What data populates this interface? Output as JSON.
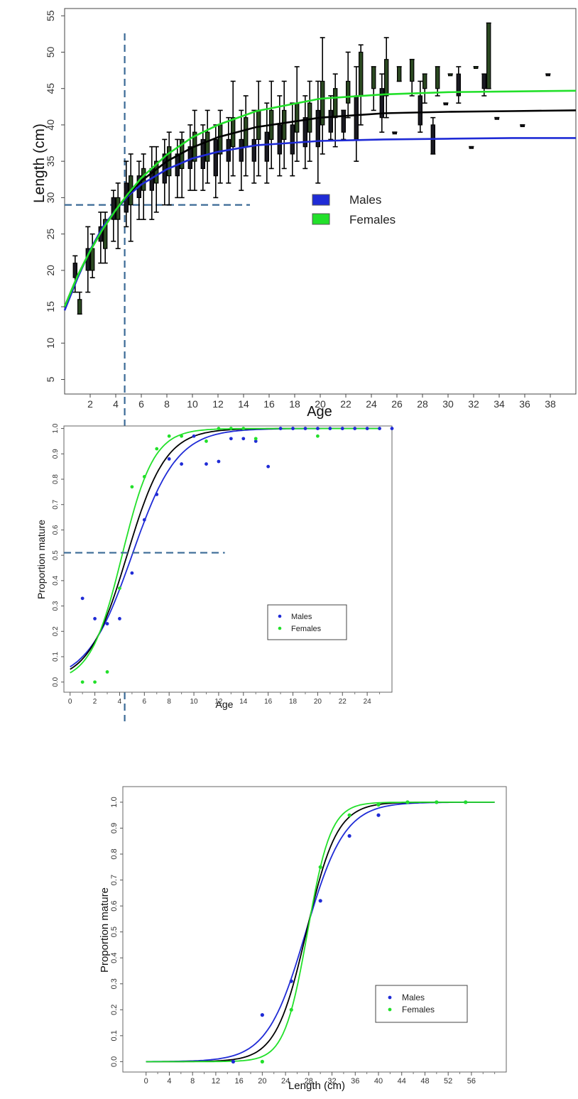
{
  "colors": {
    "males": "#1f2bd6",
    "females": "#22e02a",
    "combined": "#000000",
    "reference_line": "#3a6a96",
    "boxplot": "#000000"
  },
  "chart_data": [
    {
      "type": "box",
      "title": "",
      "xlabel": "Age",
      "ylabel": "Length (cm)",
      "xlim": [
        0,
        40
      ],
      "ylim": [
        3,
        56
      ],
      "xticks": [
        2,
        4,
        6,
        8,
        10,
        12,
        14,
        16,
        18,
        20,
        22,
        24,
        26,
        28,
        30,
        32,
        34,
        36,
        38
      ],
      "yticks": [
        5,
        10,
        15,
        20,
        25,
        30,
        35,
        40,
        45,
        50,
        55
      ],
      "legend": {
        "position": "center-right",
        "entries": [
          "Males",
          "Females"
        ]
      },
      "grid": false,
      "reference_lines": {
        "x": 4.7,
        "y": 29,
        "y_line_x_extent": [
          0,
          14.5
        ]
      },
      "boxes": [
        {
          "age": 1,
          "group": "males",
          "lo": 17,
          "q1": 19,
          "q3": 21,
          "hi": 22
        },
        {
          "age": 1,
          "group": "females",
          "lo": 14,
          "q1": 14,
          "q3": 16,
          "hi": 17
        },
        {
          "age": 2,
          "group": "males",
          "lo": 17,
          "q1": 20,
          "q3": 23,
          "hi": 26
        },
        {
          "age": 2,
          "group": "females",
          "lo": 19,
          "q1": 20,
          "q3": 23,
          "hi": 25
        },
        {
          "age": 3,
          "group": "males",
          "lo": 21,
          "q1": 24,
          "q3": 26,
          "hi": 28
        },
        {
          "age": 3,
          "group": "females",
          "lo": 21,
          "q1": 23,
          "q3": 27,
          "hi": 28
        },
        {
          "age": 4,
          "group": "males",
          "lo": 24,
          "q1": 27,
          "q3": 30,
          "hi": 31
        },
        {
          "age": 4,
          "group": "females",
          "lo": 23,
          "q1": 27,
          "q3": 30,
          "hi": 32
        },
        {
          "age": 5,
          "group": "males",
          "lo": 26,
          "q1": 28,
          "q3": 32,
          "hi": 35
        },
        {
          "age": 5,
          "group": "females",
          "lo": 24,
          "q1": 29,
          "q3": 33,
          "hi": 36
        },
        {
          "age": 6,
          "group": "males",
          "lo": 27,
          "q1": 30,
          "q3": 33,
          "hi": 35
        },
        {
          "age": 6,
          "group": "females",
          "lo": 27,
          "q1": 31,
          "q3": 34,
          "hi": 36
        },
        {
          "age": 7,
          "group": "males",
          "lo": 27,
          "q1": 31,
          "q3": 34,
          "hi": 37
        },
        {
          "age": 7,
          "group": "females",
          "lo": 28,
          "q1": 32,
          "q3": 35,
          "hi": 37
        },
        {
          "age": 8,
          "group": "males",
          "lo": 29,
          "q1": 32,
          "q3": 36,
          "hi": 38
        },
        {
          "age": 8,
          "group": "females",
          "lo": 29,
          "q1": 33,
          "q3": 37,
          "hi": 39
        },
        {
          "age": 9,
          "group": "males",
          "lo": 30,
          "q1": 33,
          "q3": 36,
          "hi": 38
        },
        {
          "age": 9,
          "group": "females",
          "lo": 30,
          "q1": 34,
          "q3": 38,
          "hi": 39
        },
        {
          "age": 10,
          "group": "males",
          "lo": 31,
          "q1": 34,
          "q3": 37,
          "hi": 40
        },
        {
          "age": 10,
          "group": "females",
          "lo": 31,
          "q1": 35,
          "q3": 39,
          "hi": 42
        },
        {
          "age": 11,
          "group": "males",
          "lo": 31,
          "q1": 34,
          "q3": 38,
          "hi": 40
        },
        {
          "age": 11,
          "group": "females",
          "lo": 32,
          "q1": 35,
          "q3": 39,
          "hi": 42
        },
        {
          "age": 12,
          "group": "males",
          "lo": 30,
          "q1": 33,
          "q3": 38,
          "hi": 40
        },
        {
          "age": 12,
          "group": "females",
          "lo": 32,
          "q1": 36,
          "q3": 40,
          "hi": 42
        },
        {
          "age": 13,
          "group": "males",
          "lo": 32,
          "q1": 35,
          "q3": 38,
          "hi": 41
        },
        {
          "age": 13,
          "group": "females",
          "lo": 33,
          "q1": 37,
          "q3": 41,
          "hi": 46
        },
        {
          "age": 14,
          "group": "males",
          "lo": 31,
          "q1": 35,
          "q3": 38,
          "hi": 42
        },
        {
          "age": 14,
          "group": "females",
          "lo": 33,
          "q1": 37,
          "q3": 41,
          "hi": 44
        },
        {
          "age": 15,
          "group": "males",
          "lo": 32,
          "q1": 35,
          "q3": 38,
          "hi": 42
        },
        {
          "age": 15,
          "group": "females",
          "lo": 33,
          "q1": 38,
          "q3": 42,
          "hi": 46
        },
        {
          "age": 16,
          "group": "males",
          "lo": 32,
          "q1": 35,
          "q3": 39,
          "hi": 43
        },
        {
          "age": 16,
          "group": "females",
          "lo": 34,
          "q1": 38,
          "q3": 42,
          "hi": 46
        },
        {
          "age": 17,
          "group": "males",
          "lo": 33,
          "q1": 36,
          "q3": 40,
          "hi": 44
        },
        {
          "age": 17,
          "group": "females",
          "lo": 34,
          "q1": 38,
          "q3": 42,
          "hi": 46
        },
        {
          "age": 18,
          "group": "males",
          "lo": 33,
          "q1": 36,
          "q3": 40,
          "hi": 43
        },
        {
          "age": 18,
          "group": "females",
          "lo": 35,
          "q1": 39,
          "q3": 43,
          "hi": 48
        },
        {
          "age": 19,
          "group": "males",
          "lo": 34,
          "q1": 37,
          "q3": 41,
          "hi": 44
        },
        {
          "age": 19,
          "group": "females",
          "lo": 35,
          "q1": 39,
          "q3": 43,
          "hi": 46
        },
        {
          "age": 20,
          "group": "males",
          "lo": 32,
          "q1": 37,
          "q3": 42,
          "hi": 46
        },
        {
          "age": 20,
          "group": "females",
          "lo": 36,
          "q1": 40,
          "q3": 46,
          "hi": 52
        },
        {
          "age": 21,
          "group": "males",
          "lo": 38,
          "q1": 39,
          "q3": 42,
          "hi": 44
        },
        {
          "age": 21,
          "group": "females",
          "lo": 37,
          "q1": 41,
          "q3": 45,
          "hi": 47
        },
        {
          "age": 22,
          "group": "males",
          "lo": 38,
          "q1": 39,
          "q3": 42,
          "hi": 42
        },
        {
          "age": 22,
          "group": "females",
          "lo": 41,
          "q1": 43,
          "q3": 46,
          "hi": 50
        },
        {
          "age": 23,
          "group": "males",
          "lo": 35,
          "q1": 38,
          "q3": 44,
          "hi": 48
        },
        {
          "age": 23,
          "group": "females",
          "lo": 40,
          "q1": 44,
          "q3": 50,
          "hi": 51
        },
        {
          "age": 24,
          "group": "females",
          "lo": 42,
          "q1": 45,
          "q3": 48,
          "hi": 48
        },
        {
          "age": 25,
          "group": "males",
          "lo": 39,
          "q1": 41,
          "q3": 45,
          "hi": 47
        },
        {
          "age": 25,
          "group": "females",
          "lo": 41,
          "q1": 44,
          "q3": 49,
          "hi": 52
        },
        {
          "age": 26,
          "group": "males",
          "lo": 39,
          "q1": 39,
          "q3": 39,
          "hi": 39
        },
        {
          "age": 26,
          "group": "females",
          "lo": 46,
          "q1": 46,
          "q3": 48,
          "hi": 48
        },
        {
          "age": 27,
          "group": "females",
          "lo": 44,
          "q1": 46,
          "q3": 49,
          "hi": 49
        },
        {
          "age": 28,
          "group": "males",
          "lo": 39,
          "q1": 40,
          "q3": 44,
          "hi": 46
        },
        {
          "age": 28,
          "group": "females",
          "lo": 43,
          "q1": 45,
          "q3": 47,
          "hi": 47
        },
        {
          "age": 29,
          "group": "males",
          "lo": 36,
          "q1": 36,
          "q3": 40,
          "hi": 41
        },
        {
          "age": 29,
          "group": "females",
          "lo": 44,
          "q1": 45,
          "q3": 48,
          "hi": 48
        },
        {
          "age": 30,
          "group": "males",
          "lo": 43,
          "q1": 43,
          "q3": 43,
          "hi": 43
        },
        {
          "age": 30,
          "group": "females",
          "lo": 47,
          "q1": 47,
          "q3": 47,
          "hi": 47
        },
        {
          "age": 31,
          "group": "males",
          "lo": 43,
          "q1": 44,
          "q3": 47,
          "hi": 48
        },
        {
          "age": 32,
          "group": "males",
          "lo": 37,
          "q1": 37,
          "q3": 37,
          "hi": 37
        },
        {
          "age": 32,
          "group": "females",
          "lo": 48,
          "q1": 48,
          "q3": 48,
          "hi": 48
        },
        {
          "age": 33,
          "group": "males",
          "lo": 44,
          "q1": 45,
          "q3": 47,
          "hi": 47
        },
        {
          "age": 33,
          "group": "females",
          "lo": 45,
          "q1": 45,
          "q3": 54,
          "hi": 54
        },
        {
          "age": 34,
          "group": "males",
          "lo": 41,
          "q1": 41,
          "q3": 41,
          "hi": 41
        },
        {
          "age": 36,
          "group": "males",
          "lo": 40,
          "q1": 40,
          "q3": 40,
          "hi": 40
        },
        {
          "age": 38,
          "group": "males",
          "lo": 47,
          "q1": 47,
          "q3": 47,
          "hi": 47
        }
      ],
      "curves": [
        {
          "group": "males",
          "x": [
            0,
            1,
            2,
            3,
            4,
            5,
            6,
            8,
            10,
            12,
            15,
            20,
            25,
            30,
            35,
            40
          ],
          "y": [
            14.5,
            18.9,
            22.8,
            26,
            28.3,
            30.3,
            31.8,
            33.9,
            35.4,
            36.3,
            37.2,
            37.8,
            38,
            38.1,
            38.2,
            38.2
          ]
        },
        {
          "group": "combined",
          "x": [
            0,
            1,
            2,
            3,
            4,
            5,
            6,
            8,
            10,
            12,
            15,
            20,
            25,
            30,
            35,
            40
          ],
          "y": [
            15,
            19.2,
            22.7,
            25.7,
            28.3,
            30.5,
            32.3,
            35,
            36.9,
            38.3,
            39.7,
            41,
            41.6,
            41.8,
            41.9,
            42
          ]
        },
        {
          "group": "females",
          "x": [
            0,
            1,
            2,
            3,
            4,
            5,
            6,
            8,
            10,
            12,
            15,
            20,
            25,
            30,
            35,
            40
          ],
          "y": [
            15,
            19.2,
            22.7,
            25.7,
            28.3,
            30.6,
            32.7,
            35.9,
            38.3,
            40,
            41.9,
            43.6,
            44.2,
            44.5,
            44.6,
            44.7
          ]
        }
      ]
    },
    {
      "type": "scatter",
      "title": "",
      "xlabel": "Age",
      "ylabel": "Proportion mature",
      "xlim": [
        -0.5,
        26
      ],
      "ylim": [
        -0.04,
        1.01
      ],
      "xticks": [
        0,
        2,
        4,
        6,
        8,
        10,
        12,
        14,
        16,
        18,
        20,
        22,
        24
      ],
      "minor_xticks": [
        1,
        3,
        5,
        7,
        9,
        11,
        13,
        15,
        17,
        19,
        21,
        23,
        25
      ],
      "yticks": [
        0,
        0.1,
        0.2,
        0.3,
        0.4,
        0.5,
        0.6,
        0.7,
        0.8,
        0.9,
        1.0
      ],
      "ytick_labels": [
        "0.0",
        "0.1",
        "0.2",
        "0.3",
        "0.4",
        "0.5",
        "0.6",
        "0.7",
        "0.8",
        "0.9",
        "1.0"
      ],
      "legend": {
        "position": "lower-right",
        "entries": [
          "Males",
          "Females"
        ]
      },
      "grid": false,
      "reference_lines": {
        "x": 4.7,
        "y": 0.51,
        "y_line_x_extent": [
          -0.5,
          12.5
        ]
      },
      "points": [
        {
          "group": "males",
          "x": [
            1,
            2,
            3,
            4,
            5,
            6,
            7,
            8,
            9,
            10,
            11,
            12,
            13,
            14,
            15,
            16,
            17,
            18,
            19,
            20,
            21,
            22,
            23,
            24,
            25,
            26
          ],
          "y": [
            0.33,
            0.25,
            0.23,
            0.25,
            0.43,
            0.64,
            0.74,
            0.88,
            0.86,
            0.97,
            0.86,
            0.87,
            0.96,
            0.96,
            0.95,
            0.85,
            1,
            1,
            1,
            1,
            1,
            1,
            1,
            1,
            1,
            1
          ]
        },
        {
          "group": "females",
          "x": [
            1,
            2,
            3,
            4,
            5,
            6,
            7,
            8,
            9,
            11,
            12,
            13,
            14,
            15,
            20
          ],
          "y": [
            0,
            0,
            0.04,
            0.37,
            0.77,
            0.81,
            0.92,
            0.97,
            0.97,
            0.95,
            1,
            1,
            1,
            0.96,
            0.97
          ]
        }
      ],
      "curves": [
        {
          "group": "males",
          "model": "logistic",
          "a50": 5.0,
          "slope": 0.55,
          "x_range": [
            0,
            25
          ]
        },
        {
          "group": "combined",
          "model": "logistic",
          "a50": 4.6,
          "slope": 0.64,
          "x_range": [
            0,
            25
          ]
        },
        {
          "group": "females",
          "model": "logistic",
          "a50": 4.2,
          "slope": 0.78,
          "x_range": [
            0,
            25
          ]
        }
      ]
    },
    {
      "type": "scatter",
      "title": "",
      "xlabel": "Length (cm)",
      "ylabel": "Proportion mature",
      "xlim": [
        -4,
        62
      ],
      "ylim": [
        -0.04,
        1.06
      ],
      "xticks": [
        0,
        4,
        8,
        12,
        16,
        20,
        24,
        28,
        32,
        36,
        40,
        44,
        48,
        52,
        56
      ],
      "minor_xticks": [
        2,
        6,
        10,
        14,
        18,
        22,
        26,
        30,
        34,
        38,
        42,
        46,
        50,
        54,
        58,
        60
      ],
      "yticks": [
        0,
        0.1,
        0.2,
        0.3,
        0.4,
        0.5,
        0.6,
        0.7,
        0.8,
        0.9,
        1.0
      ],
      "ytick_labels": [
        "0.0",
        "0.1",
        "0.2",
        "0.3",
        "0.4",
        "0.5",
        "0.6",
        "0.7",
        "0.8",
        "0.9",
        "1.0"
      ],
      "legend": {
        "position": "lower-right",
        "entries": [
          "Males",
          "Females"
        ]
      },
      "grid": false,
      "points": [
        {
          "group": "males",
          "x": [
            15,
            20,
            25,
            30,
            35,
            40,
            45,
            50,
            55
          ],
          "y": [
            0,
            0.18,
            0.31,
            0.62,
            0.87,
            0.95,
            1,
            1,
            1
          ]
        },
        {
          "group": "females",
          "x": [
            20,
            25,
            30,
            35,
            40,
            45,
            50,
            55
          ],
          "y": [
            0,
            0.2,
            0.75,
            0.95,
            0.99,
            1,
            1,
            1
          ]
        }
      ],
      "curves": [
        {
          "group": "males",
          "model": "logistic",
          "a50": 27.5,
          "slope": 0.3,
          "x_range": [
            0,
            60
          ]
        },
        {
          "group": "combined",
          "model": "logistic",
          "a50": 27.6,
          "slope": 0.38,
          "x_range": [
            0,
            60
          ]
        },
        {
          "group": "females",
          "model": "logistic",
          "a50": 27.8,
          "slope": 0.5,
          "x_range": [
            0,
            60
          ]
        }
      ]
    }
  ]
}
